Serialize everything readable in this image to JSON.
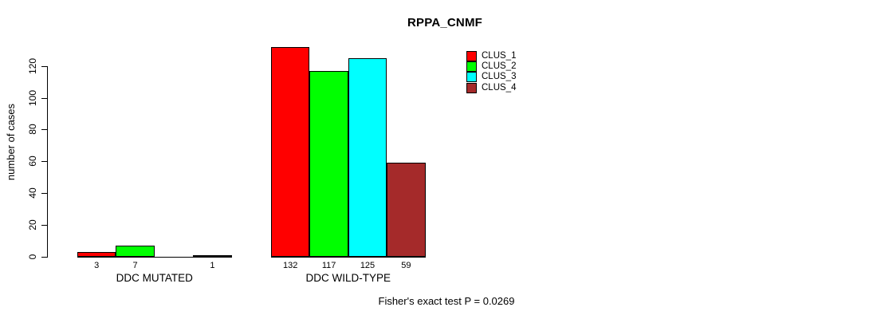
{
  "chart_data": {
    "type": "bar",
    "title": "RPPA_CNMF",
    "ylabel": "number of cases",
    "xlabel": "",
    "categories": [
      "DDC MUTATED",
      "DDC WILD-TYPE"
    ],
    "series": [
      {
        "name": "CLUS_1",
        "color": "#ff0000",
        "values": [
          3,
          132
        ]
      },
      {
        "name": "CLUS_2",
        "color": "#00ff00",
        "values": [
          7,
          117
        ]
      },
      {
        "name": "CLUS_3",
        "color": "#00ffff",
        "values": [
          0,
          125
        ]
      },
      {
        "name": "CLUS_4",
        "color": "#a52a2a",
        "values": [
          1,
          59
        ]
      }
    ],
    "yticks": [
      0,
      20,
      40,
      60,
      80,
      100,
      120
    ],
    "ylim": [
      0,
      132
    ],
    "grid": false,
    "legend_position": "right",
    "annotation": "Fisher's exact test P = 0.0269"
  }
}
